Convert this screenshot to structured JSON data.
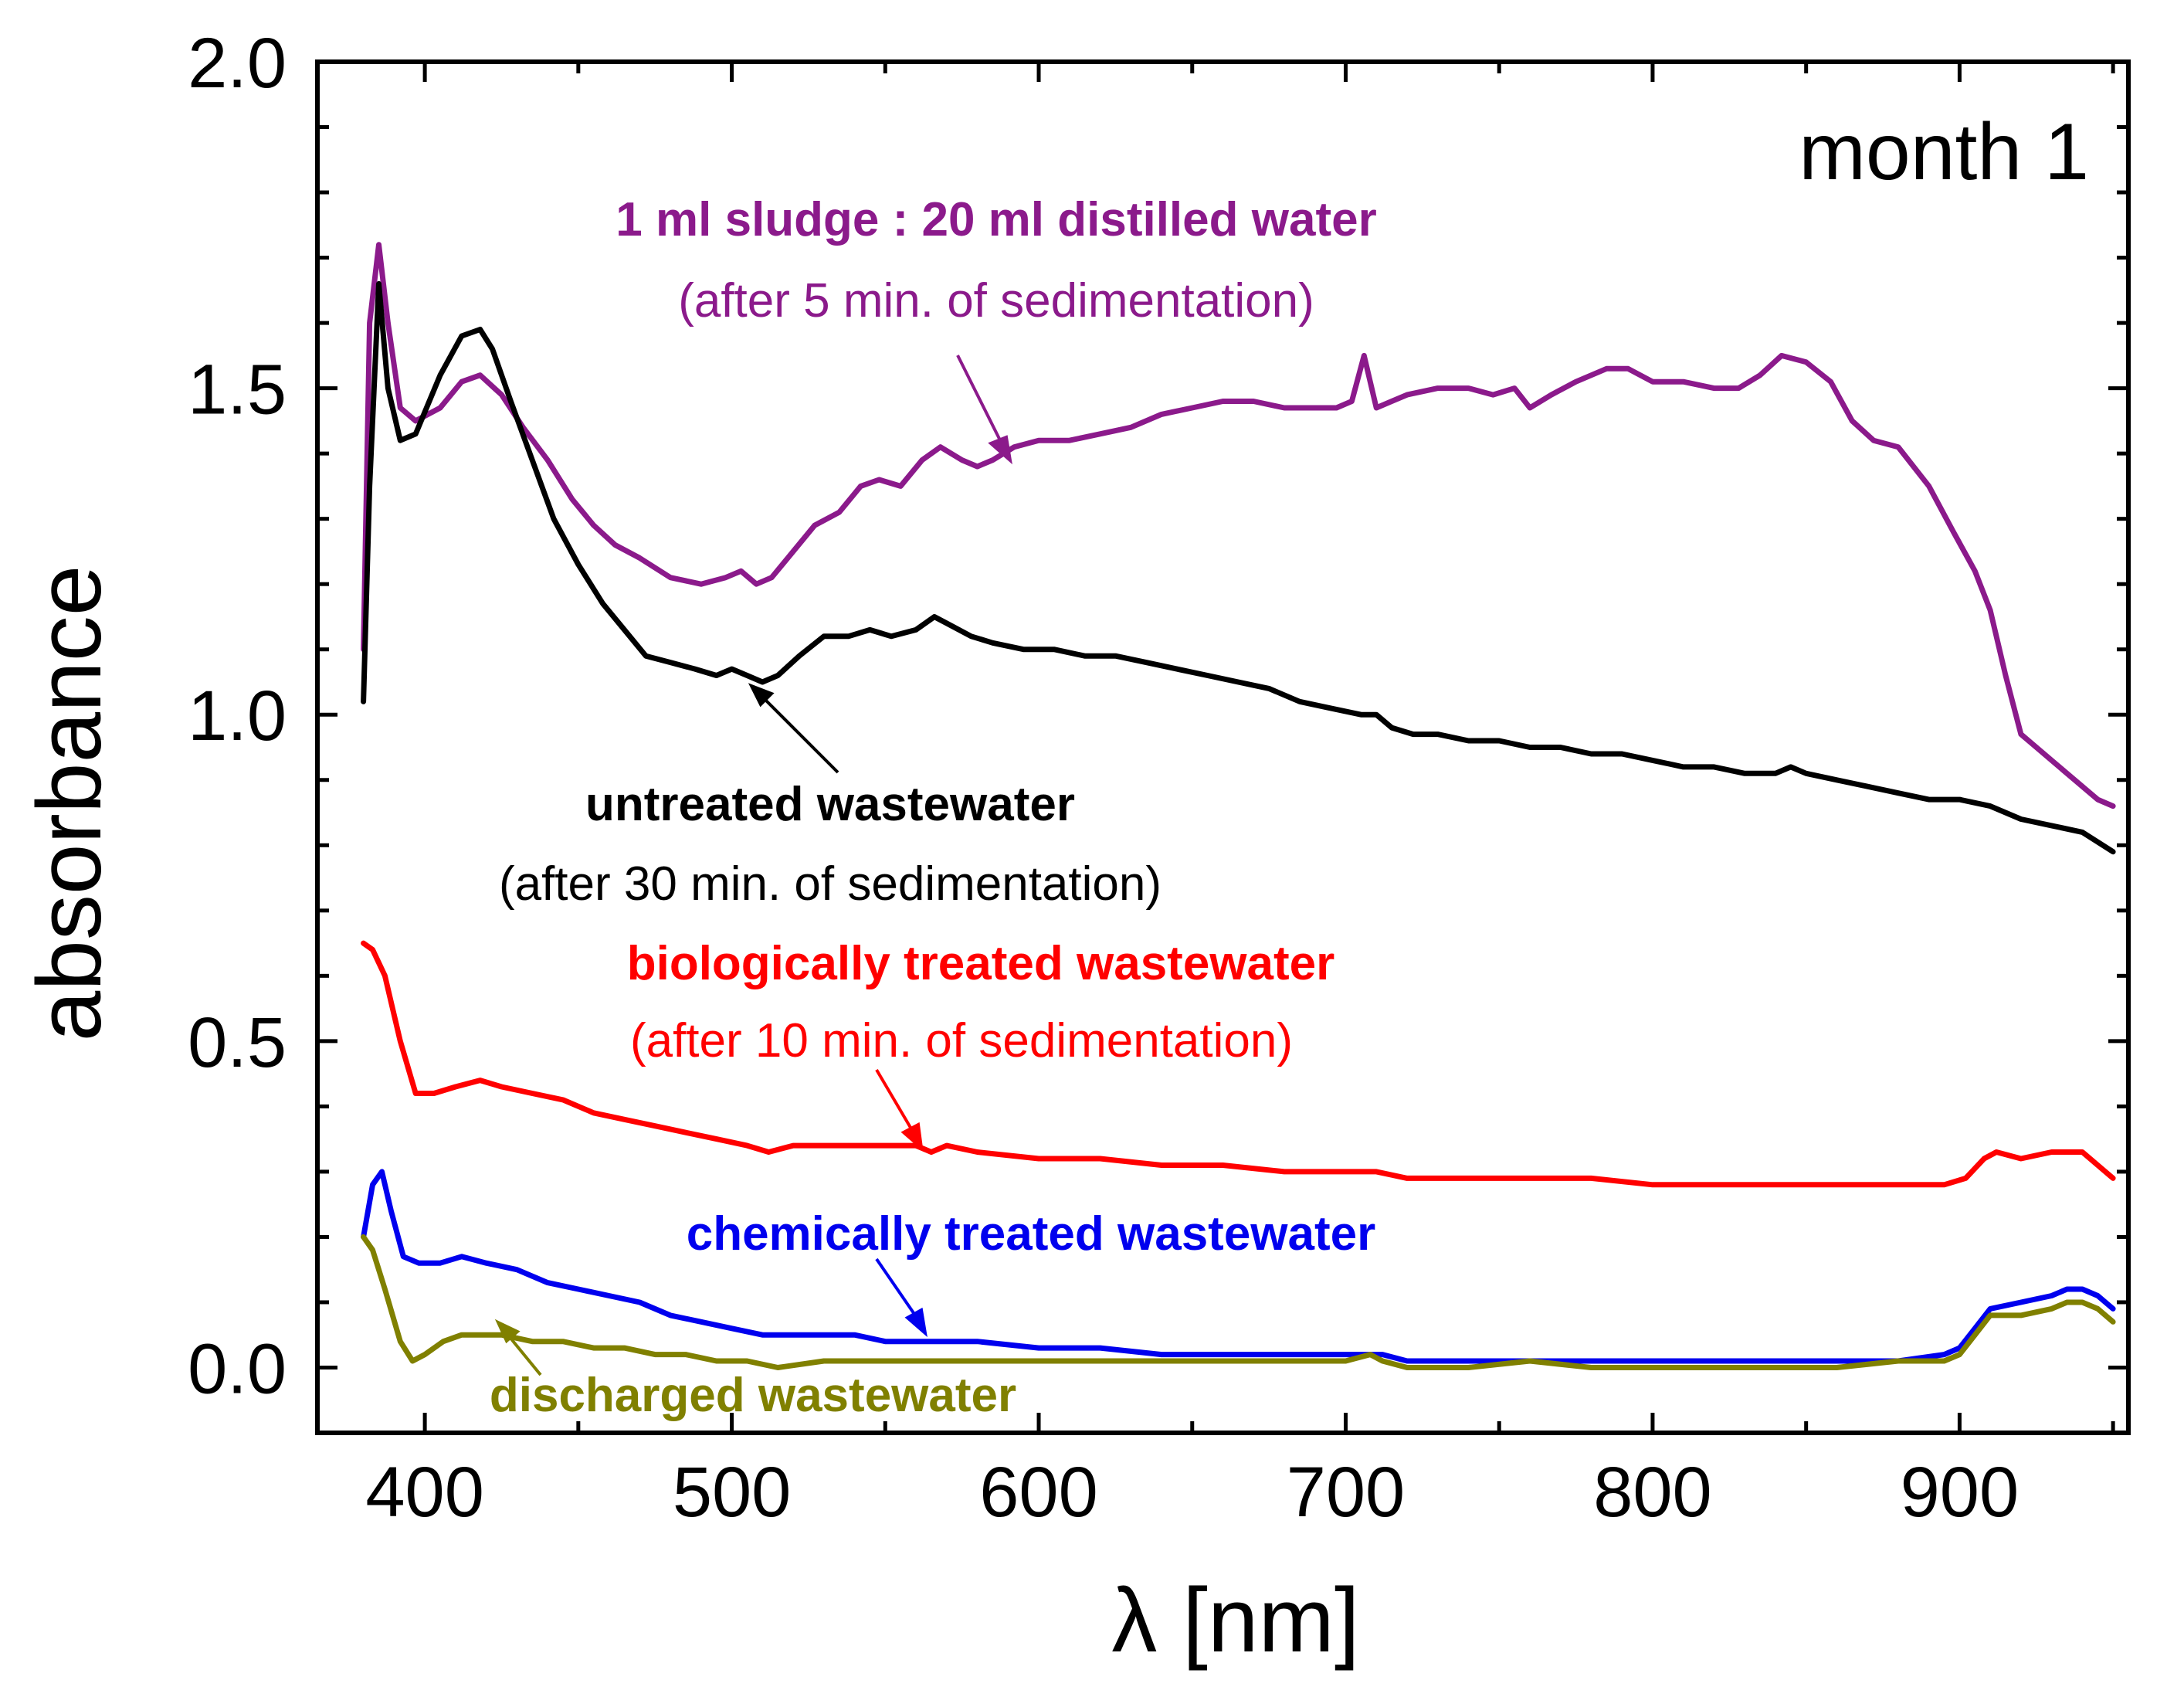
{
  "chart_data": {
    "type": "line",
    "title": "",
    "xlabel": "λ [nm]",
    "ylabel": "absorbance",
    "xlim": [
      365,
      955
    ],
    "ylim": [
      -0.1,
      2.0
    ],
    "xticks": [
      "400",
      "500",
      "600",
      "700",
      "800",
      "900"
    ],
    "yticks": [
      "0.0",
      "0.5",
      "1.0",
      "1.5",
      "2.0"
    ],
    "panel_label": "month 1",
    "grid": false,
    "series": [
      {
        "name": "1 ml sludge : 20 ml distilled water",
        "note": "(after 5 min. of sedimentation)",
        "color": "#8B1A8B",
        "x": [
          380,
          382,
          385,
          388,
          392,
          397,
          405,
          412,
          418,
          425,
          432,
          440,
          448,
          455,
          462,
          470,
          480,
          490,
          498,
          503,
          508,
          513,
          520,
          527,
          535,
          542,
          548,
          555,
          562,
          568,
          575,
          580,
          585,
          592,
          600,
          610,
          620,
          630,
          640,
          650,
          660,
          670,
          680,
          690,
          697,
          702,
          706,
          710,
          715,
          720,
          730,
          740,
          748,
          755,
          760,
          767,
          775,
          785,
          792,
          800,
          810,
          820,
          828,
          835,
          842,
          850,
          858,
          865,
          872,
          880,
          890,
          898,
          905,
          910,
          915,
          920,
          925,
          930,
          935,
          940,
          945,
          950
        ],
        "y": [
          1.1,
          1.6,
          1.72,
          1.6,
          1.47,
          1.45,
          1.47,
          1.51,
          1.52,
          1.49,
          1.44,
          1.39,
          1.33,
          1.29,
          1.26,
          1.24,
          1.21,
          1.2,
          1.21,
          1.22,
          1.2,
          1.21,
          1.25,
          1.29,
          1.31,
          1.35,
          1.36,
          1.35,
          1.39,
          1.41,
          1.39,
          1.38,
          1.39,
          1.41,
          1.42,
          1.42,
          1.43,
          1.44,
          1.46,
          1.47,
          1.48,
          1.48,
          1.47,
          1.47,
          1.47,
          1.48,
          1.55,
          1.47,
          1.48,
          1.49,
          1.5,
          1.5,
          1.49,
          1.5,
          1.47,
          1.49,
          1.51,
          1.53,
          1.53,
          1.51,
          1.51,
          1.5,
          1.5,
          1.52,
          1.55,
          1.54,
          1.51,
          1.45,
          1.42,
          1.41,
          1.35,
          1.28,
          1.22,
          1.16,
          1.06,
          0.97,
          0.95,
          0.93,
          0.91,
          0.89,
          0.87,
          0.86
        ]
      },
      {
        "name": "untreated wastewater",
        "note": "(after 30 min. of sedimentation)",
        "color": "#000000",
        "x": [
          380,
          382,
          385,
          388,
          392,
          397,
          405,
          412,
          418,
          422,
          428,
          435,
          442,
          450,
          458,
          465,
          472,
          480,
          488,
          495,
          500,
          505,
          510,
          515,
          522,
          530,
          538,
          545,
          552,
          560,
          566,
          570,
          578,
          585,
          595,
          605,
          615,
          625,
          635,
          645,
          655,
          665,
          675,
          685,
          695,
          705,
          710,
          715,
          722,
          730,
          740,
          750,
          760,
          770,
          780,
          790,
          800,
          810,
          820,
          830,
          840,
          845,
          850,
          860,
          870,
          880,
          890,
          900,
          910,
          920,
          930,
          940,
          950
        ],
        "y": [
          1.02,
          1.35,
          1.66,
          1.5,
          1.42,
          1.43,
          1.52,
          1.58,
          1.59,
          1.56,
          1.48,
          1.39,
          1.3,
          1.23,
          1.17,
          1.13,
          1.09,
          1.08,
          1.07,
          1.06,
          1.07,
          1.06,
          1.05,
          1.06,
          1.09,
          1.12,
          1.12,
          1.13,
          1.12,
          1.13,
          1.15,
          1.14,
          1.12,
          1.11,
          1.1,
          1.1,
          1.09,
          1.09,
          1.08,
          1.07,
          1.06,
          1.05,
          1.04,
          1.02,
          1.01,
          1.0,
          1.0,
          0.98,
          0.97,
          0.97,
          0.96,
          0.96,
          0.95,
          0.95,
          0.94,
          0.94,
          0.93,
          0.92,
          0.92,
          0.91,
          0.91,
          0.92,
          0.91,
          0.9,
          0.89,
          0.88,
          0.87,
          0.87,
          0.86,
          0.84,
          0.83,
          0.82,
          0.79
        ]
      },
      {
        "name": "biologically treated wastewater",
        "note": "(after 10 min. of sedimentation)",
        "color": "#FF0000",
        "x": [
          380,
          383,
          387,
          392,
          397,
          403,
          410,
          418,
          425,
          435,
          445,
          455,
          465,
          475,
          485,
          495,
          505,
          512,
          520,
          530,
          540,
          550,
          560,
          565,
          570,
          580,
          600,
          620,
          640,
          660,
          680,
          700,
          710,
          720,
          740,
          760,
          780,
          800,
          820,
          840,
          860,
          880,
          895,
          902,
          908,
          912,
          920,
          930,
          935,
          940,
          945,
          950
        ],
        "y": [
          0.65,
          0.64,
          0.6,
          0.5,
          0.42,
          0.42,
          0.43,
          0.44,
          0.43,
          0.42,
          0.41,
          0.39,
          0.38,
          0.37,
          0.36,
          0.35,
          0.34,
          0.33,
          0.34,
          0.34,
          0.34,
          0.34,
          0.34,
          0.33,
          0.34,
          0.33,
          0.32,
          0.32,
          0.31,
          0.31,
          0.3,
          0.3,
          0.3,
          0.29,
          0.29,
          0.29,
          0.29,
          0.28,
          0.28,
          0.28,
          0.28,
          0.28,
          0.28,
          0.29,
          0.32,
          0.33,
          0.32,
          0.33,
          0.33,
          0.33,
          0.31,
          0.29
        ]
      },
      {
        "name": "chemically treated wastewater",
        "note": "",
        "color": "#0000EE",
        "x": [
          380,
          383,
          386,
          389,
          393,
          398,
          405,
          412,
          420,
          430,
          440,
          450,
          460,
          470,
          480,
          490,
          500,
          510,
          520,
          530,
          540,
          550,
          560,
          570,
          580,
          600,
          620,
          640,
          660,
          680,
          700,
          708,
          712,
          720,
          740,
          760,
          780,
          800,
          820,
          840,
          860,
          880,
          895,
          900,
          905,
          910,
          920,
          930,
          935,
          940,
          945,
          950
        ],
        "y": [
          0.2,
          0.28,
          0.3,
          0.24,
          0.17,
          0.16,
          0.16,
          0.17,
          0.16,
          0.15,
          0.13,
          0.12,
          0.11,
          0.1,
          0.08,
          0.07,
          0.06,
          0.05,
          0.05,
          0.05,
          0.05,
          0.04,
          0.04,
          0.04,
          0.04,
          0.03,
          0.03,
          0.02,
          0.02,
          0.02,
          0.02,
          0.02,
          0.02,
          0.01,
          0.01,
          0.01,
          0.01,
          0.01,
          0.01,
          0.01,
          0.01,
          0.01,
          0.02,
          0.03,
          0.06,
          0.09,
          0.1,
          0.11,
          0.12,
          0.12,
          0.11,
          0.09
        ]
      },
      {
        "name": "discharged wastewater",
        "note": "",
        "color": "#808000",
        "x": [
          380,
          383,
          387,
          392,
          396,
          400,
          406,
          412,
          418,
          425,
          435,
          445,
          455,
          465,
          475,
          485,
          495,
          505,
          515,
          530,
          545,
          560,
          580,
          600,
          620,
          640,
          660,
          680,
          700,
          708,
          712,
          720,
          740,
          760,
          780,
          800,
          820,
          840,
          860,
          880,
          895,
          900,
          905,
          910,
          920,
          930,
          935,
          940,
          945,
          950
        ],
        "y": [
          0.2,
          0.18,
          0.12,
          0.04,
          0.01,
          0.02,
          0.04,
          0.05,
          0.05,
          0.05,
          0.04,
          0.04,
          0.03,
          0.03,
          0.02,
          0.02,
          0.01,
          0.01,
          0.0,
          0.01,
          0.01,
          0.01,
          0.01,
          0.01,
          0.01,
          0.01,
          0.01,
          0.01,
          0.01,
          0.02,
          0.01,
          0.0,
          0.0,
          0.01,
          0.0,
          0.0,
          0.0,
          0.0,
          0.0,
          0.01,
          0.01,
          0.02,
          0.05,
          0.08,
          0.08,
          0.09,
          0.1,
          0.1,
          0.09,
          0.07
        ]
      }
    ],
    "annotations": [
      {
        "target": 0,
        "bold": "1 ml sludge : 20 ml distilled water",
        "regular": "(after 5 min. of sedimentation)",
        "color": "#8B1A8B"
      },
      {
        "target": 1,
        "bold": "untreated wastewater",
        "regular": "(after 30 min. of sedimentation)",
        "color": "#000000"
      },
      {
        "target": 2,
        "bold": "biologically treated wastewater",
        "regular": "(after 10 min. of sedimentation)",
        "color": "#FF0000"
      },
      {
        "target": 3,
        "bold": "chemically treated wastewater",
        "regular": "",
        "color": "#0000EE"
      },
      {
        "target": 4,
        "bold": "discharged wastewater",
        "regular": "",
        "color": "#808000"
      }
    ]
  }
}
